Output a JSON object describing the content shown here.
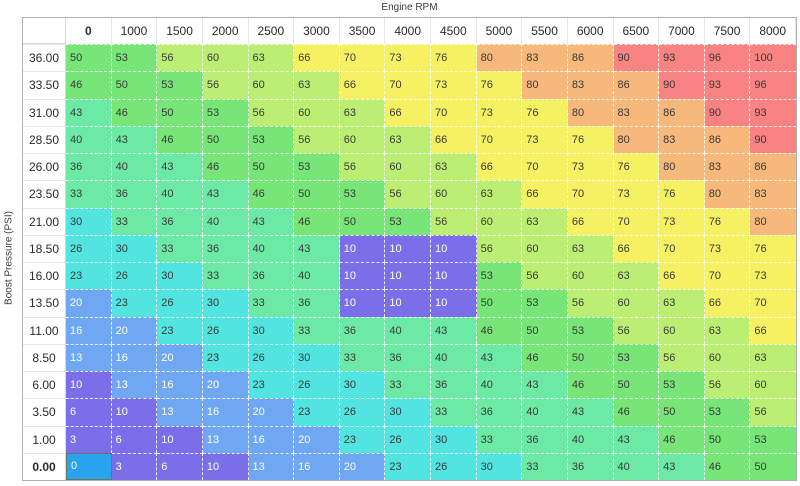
{
  "labels": {
    "x_axis": "Engine RPM",
    "y_axis": "Boost Pressure (PSI)"
  },
  "table": {
    "col_labels": [
      "0",
      "1000",
      "1500",
      "2000",
      "2500",
      "3000",
      "3500",
      "4000",
      "4500",
      "5000",
      "5500",
      "6000",
      "6500",
      "7000",
      "7500",
      "8000"
    ],
    "row_labels": [
      "36.00",
      "33.50",
      "31.00",
      "28.50",
      "26.00",
      "23.50",
      "21.00",
      "18.50",
      "16.00",
      "13.50",
      "11.00",
      "8.50",
      "6.00",
      "3.50",
      "1.00",
      "0.00"
    ],
    "values": [
      [
        50,
        53,
        56,
        60,
        63,
        66,
        70,
        73,
        76,
        80,
        83,
        86,
        90,
        93,
        96,
        100
      ],
      [
        46,
        50,
        53,
        56,
        60,
        63,
        66,
        70,
        73,
        76,
        80,
        83,
        86,
        90,
        93,
        96
      ],
      [
        43,
        46,
        50,
        53,
        56,
        60,
        63,
        66,
        70,
        73,
        76,
        80,
        83,
        86,
        90,
        93
      ],
      [
        40,
        43,
        46,
        50,
        53,
        56,
        60,
        63,
        66,
        70,
        73,
        76,
        80,
        83,
        86,
        90
      ],
      [
        36,
        40,
        43,
        46,
        50,
        53,
        56,
        60,
        63,
        66,
        70,
        73,
        76,
        80,
        83,
        86
      ],
      [
        33,
        36,
        40,
        43,
        46,
        50,
        53,
        56,
        60,
        63,
        66,
        70,
        73,
        76,
        80,
        83
      ],
      [
        30,
        33,
        36,
        40,
        43,
        46,
        50,
        53,
        56,
        60,
        63,
        66,
        70,
        73,
        76,
        80
      ],
      [
        26,
        30,
        33,
        36,
        40,
        43,
        10,
        10,
        10,
        56,
        60,
        63,
        66,
        70,
        73,
        76
      ],
      [
        23,
        26,
        30,
        33,
        36,
        40,
        10,
        10,
        10,
        53,
        56,
        60,
        63,
        66,
        70,
        73
      ],
      [
        20,
        23,
        26,
        30,
        33,
        36,
        10,
        10,
        10,
        50,
        53,
        56,
        60,
        63,
        66,
        70
      ],
      [
        16,
        20,
        23,
        26,
        30,
        33,
        36,
        40,
        43,
        46,
        50,
        53,
        56,
        60,
        63,
        66
      ],
      [
        13,
        16,
        20,
        23,
        26,
        30,
        33,
        36,
        40,
        43,
        46,
        50,
        53,
        56,
        60,
        63
      ],
      [
        10,
        13,
        16,
        20,
        23,
        26,
        30,
        33,
        36,
        40,
        43,
        46,
        50,
        53,
        56,
        60
      ],
      [
        6,
        10,
        13,
        16,
        20,
        23,
        26,
        30,
        33,
        36,
        40,
        43,
        46,
        50,
        53,
        56
      ],
      [
        3,
        6,
        10,
        13,
        16,
        20,
        23,
        26,
        30,
        33,
        36,
        40,
        43,
        46,
        50,
        53
      ],
      [
        0,
        3,
        6,
        10,
        13,
        16,
        20,
        23,
        26,
        30,
        33,
        36,
        40,
        43,
        46,
        50
      ]
    ],
    "palette": [
      {
        "max": 12,
        "bg": "#7b6fe9",
        "text": "#ffffff"
      },
      {
        "max": 22,
        "bg": "#6fa7f2",
        "text": "#ffffff"
      },
      {
        "max": 32,
        "bg": "#52e4e0",
        "text": "#3a3a3a"
      },
      {
        "max": 45,
        "bg": "#6de9a6",
        "text": "#3a3a3a"
      },
      {
        "max": 55,
        "bg": "#77e577",
        "text": "#3a3a3a"
      },
      {
        "max": 65,
        "bg": "#bdee74",
        "text": "#3a3a3a"
      },
      {
        "max": 78,
        "bg": "#f5f163",
        "text": "#3a3a3a"
      },
      {
        "max": 88,
        "bg": "#f6b97b",
        "text": "#3a3a3a"
      },
      {
        "max": 100,
        "bg": "#f98282",
        "text": "#3a3a3a"
      }
    ],
    "selected_cell": {
      "row": 15,
      "col": 0,
      "bg": "#29a3ee",
      "border": "#68766a",
      "value": 0
    }
  }
}
